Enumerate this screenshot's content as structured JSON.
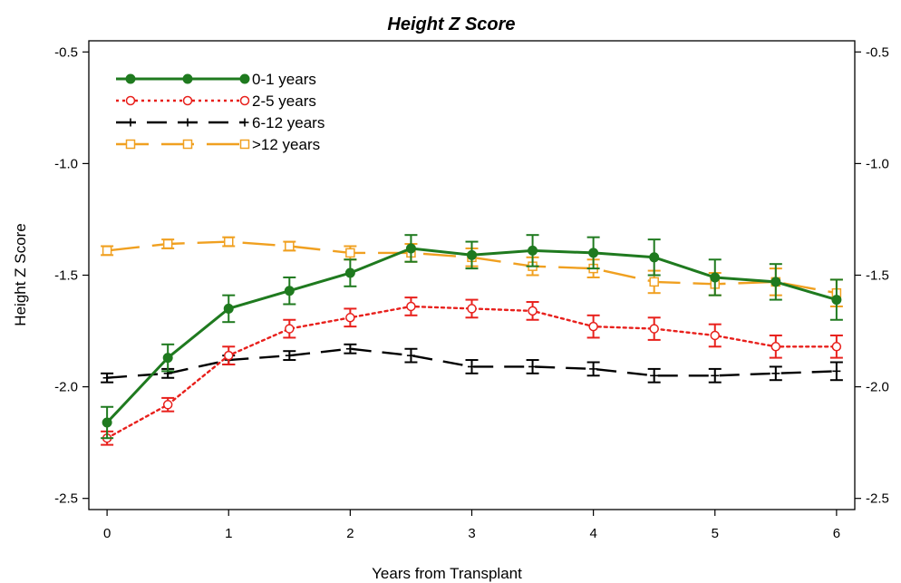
{
  "chart_data": {
    "type": "line",
    "title": "Height Z Score",
    "xlabel": "Years from Transplant",
    "ylabel": "Height Z Score",
    "xlim": [
      -0.15,
      6.15
    ],
    "ylim": [
      -2.55,
      -0.45
    ],
    "xticks": [
      "0",
      "1",
      "2",
      "3",
      "4",
      "5",
      "6"
    ],
    "yticks": [
      "-0.5",
      "-1.0",
      "-1.5",
      "-2.0",
      "-2.5"
    ],
    "right_axis": true,
    "grid": false,
    "legend_position": "top-left",
    "x": [
      0,
      0.5,
      1,
      1.5,
      2,
      2.5,
      3,
      3.5,
      4,
      4.5,
      5,
      5.5,
      6
    ],
    "series": [
      {
        "name": "0-1 years",
        "color": "#1f7a1f",
        "line_style": "solid",
        "marker": "filled-circle",
        "values": [
          -2.16,
          -1.87,
          -1.65,
          -1.57,
          -1.49,
          -1.38,
          -1.41,
          -1.39,
          -1.4,
          -1.42,
          -1.51,
          -1.53,
          -1.61
        ],
        "errors": [
          0.07,
          0.06,
          0.06,
          0.06,
          0.06,
          0.06,
          0.06,
          0.07,
          0.07,
          0.08,
          0.08,
          0.08,
          0.09
        ]
      },
      {
        "name": "2-5 years",
        "color": "#e8201c",
        "line_style": "dotted",
        "marker": "open-circle",
        "values": [
          -2.23,
          -2.08,
          -1.86,
          -1.74,
          -1.69,
          -1.64,
          -1.65,
          -1.66,
          -1.73,
          -1.74,
          -1.77,
          -1.82,
          -1.82
        ],
        "errors": [
          0.03,
          0.03,
          0.04,
          0.04,
          0.04,
          0.04,
          0.04,
          0.04,
          0.05,
          0.05,
          0.05,
          0.05,
          0.05
        ]
      },
      {
        "name": "6-12 years",
        "color": "#000000",
        "line_style": "dashed",
        "marker": "plus",
        "values": [
          -1.96,
          -1.94,
          -1.88,
          -1.86,
          -1.83,
          -1.86,
          -1.91,
          -1.91,
          -1.92,
          -1.95,
          -1.95,
          -1.94,
          -1.93
        ],
        "errors": [
          0.02,
          0.02,
          0.02,
          0.02,
          0.02,
          0.03,
          0.03,
          0.03,
          0.03,
          0.03,
          0.03,
          0.03,
          0.04
        ]
      },
      {
        "name": ">12 years",
        "color": "#f0a020",
        "line_style": "long-dash",
        "marker": "open-square",
        "values": [
          -1.39,
          -1.36,
          -1.35,
          -1.37,
          -1.4,
          -1.4,
          -1.42,
          -1.46,
          -1.47,
          -1.53,
          -1.54,
          -1.53,
          -1.58
        ],
        "errors": [
          0.02,
          0.02,
          0.02,
          0.02,
          0.03,
          0.04,
          0.04,
          0.04,
          0.04,
          0.05,
          0.05,
          0.06,
          0.06
        ]
      }
    ]
  }
}
